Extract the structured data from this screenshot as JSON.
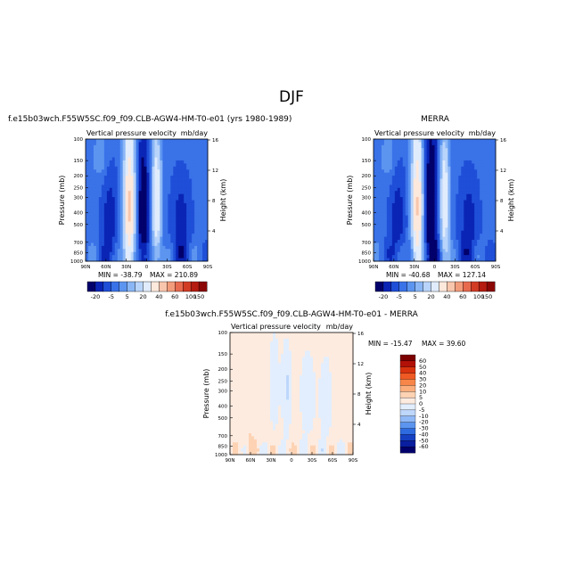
{
  "page_title": "DJF",
  "panels": [
    {
      "header": "f.e15b03wch.F55W5SC.f09_f09.CLB-AGW4-HM-T0-e01 (yrs 1980-1989)",
      "subtitle_left": "Vertical pressure velocity",
      "subtitle_right": "mb/day",
      "min_label": "MIN = -38.79",
      "max_label": "MAX = 210.89"
    },
    {
      "header": "MERRA",
      "subtitle_left": "Vertical pressure velocity",
      "subtitle_right": "mb/day",
      "min_label": "MIN = -40.68",
      "max_label": "MAX = 127.14"
    },
    {
      "header": "f.e15b03wch.F55W5SC.f09_f09.CLB-AGW4-HM-T0-e01 - MERRA",
      "subtitle_left": "Vertical pressure velocity",
      "subtitle_right": "mb/day",
      "min_label": "MIN = -15.47",
      "max_label": "MAX = 39.60"
    }
  ],
  "axes": {
    "ylabel": "Pressure (mb)",
    "ylabel_right": "Height (km)",
    "pressure_ticks": [
      "100",
      "150",
      "200",
      "250",
      "300",
      "400",
      "500",
      "700",
      "850",
      "1000"
    ],
    "height_ticks": [
      "16",
      "12",
      "8",
      "4"
    ],
    "lat_ticks": [
      "90N",
      "60N",
      "30N",
      "0",
      "30S",
      "60S",
      "90S"
    ]
  },
  "colorbar_main": {
    "labels": [
      "-20",
      "-5",
      "5",
      "20",
      "40",
      "60",
      "100",
      "150"
    ],
    "colors": [
      "#02016b",
      "#0a25b6",
      "#1f4fd8",
      "#3a72e8",
      "#5c95f0",
      "#8ab6f6",
      "#b9d4fa",
      "#e0ecfc",
      "#fde8dc",
      "#f8c6ac",
      "#f29c7c",
      "#e76a4e",
      "#d23c25",
      "#b51b10",
      "#8a0706"
    ]
  },
  "colorbar_diff": {
    "labels": [
      "60",
      "50",
      "40",
      "30",
      "20",
      "10",
      "5",
      "0",
      "-5",
      "-10",
      "-20",
      "-30",
      "-40",
      "-50",
      "-60"
    ],
    "colors": [
      "#7c0000",
      "#b11106",
      "#d8330f",
      "#ef5a24",
      "#f78648",
      "#fbae7c",
      "#fdd3b4",
      "#fdebe0",
      "#e2eefd",
      "#bed7fb",
      "#8fb8f6",
      "#5c95ef",
      "#2f6be0",
      "#1540c2",
      "#0a1fa0",
      "#02006b"
    ]
  },
  "chart_data": [
    {
      "type": "heatmap",
      "title": "f.e15b03wch.F55W5SC.f09_f09.CLB-AGW4-HM-T0-e01 (yrs 1980-1989)",
      "subtitle": "Vertical pressure velocity  mb/day",
      "xlabel": "",
      "ylabel": "Pressure (mb)",
      "ylabel_right": "Height (km)",
      "x_range": [
        "90N",
        "90S"
      ],
      "y_range": [
        1000,
        100
      ],
      "min": -38.79,
      "max": 210.89,
      "contour_levels": [
        -20,
        -15,
        -10,
        -5,
        0,
        5,
        10,
        20,
        30,
        40,
        50,
        60,
        80,
        100,
        150
      ]
    },
    {
      "type": "heatmap",
      "title": "MERRA",
      "subtitle": "Vertical pressure velocity  mb/day",
      "xlabel": "",
      "ylabel": "Pressure (mb)",
      "ylabel_right": "Height (km)",
      "x_range": [
        "90N",
        "90S"
      ],
      "y_range": [
        1000,
        100
      ],
      "min": -40.68,
      "max": 127.14,
      "contour_levels": [
        -20,
        -15,
        -10,
        -5,
        0,
        5,
        10,
        20,
        30,
        40,
        50,
        60,
        80,
        100,
        150
      ]
    },
    {
      "type": "heatmap",
      "title": "f.e15b03wch.F55W5SC.f09_f09.CLB-AGW4-HM-T0-e01 - MERRA",
      "subtitle": "Vertical pressure velocity  mb/day",
      "xlabel": "",
      "ylabel": "Pressure (mb)",
      "ylabel_right": "Height (km)",
      "x_range": [
        "90N",
        "90S"
      ],
      "y_range": [
        1000,
        100
      ],
      "min": -15.47,
      "max": 39.6,
      "contour_levels": [
        -60,
        -50,
        -40,
        -30,
        -20,
        -10,
        -5,
        0,
        5,
        10,
        20,
        30,
        40,
        50,
        60
      ]
    }
  ]
}
